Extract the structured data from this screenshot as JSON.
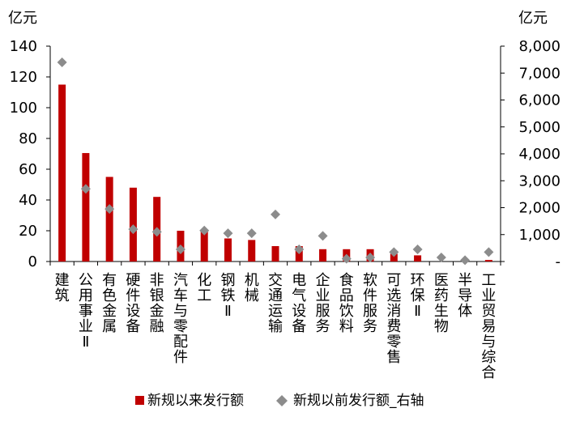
{
  "chart_data": {
    "type": "bar",
    "y_unit_left": "亿元",
    "y_unit_right": "亿元",
    "ylim_left": [
      0,
      140
    ],
    "ylim_right": [
      0,
      8000
    ],
    "yticks_left": [
      "0",
      "20",
      "40",
      "60",
      "80",
      "100",
      "120",
      "140"
    ],
    "yticks_right": [
      "-",
      "1,000",
      "2,000",
      "3,000",
      "4,000",
      "5,000",
      "6,000",
      "7,000",
      "8,000"
    ],
    "categories": [
      "建筑",
      "公用事业Ⅱ",
      "有色金属",
      "硬件设备",
      "非银金融",
      "汽车与零配件",
      "化工",
      "钢铁Ⅱ",
      "机械",
      "交通运输",
      "电气设备",
      "企业服务",
      "食品饮料",
      "软件服务",
      "可选消费零售",
      "环保Ⅱ",
      "医药生物",
      "半导体",
      "工业贸易与综合"
    ],
    "series": [
      {
        "name": "新规以来发行额",
        "type": "bar",
        "axis": "left",
        "color": "#C00000",
        "values": [
          115,
          70.5,
          55,
          48,
          42,
          20,
          20,
          15,
          14,
          10,
          10,
          8,
          8,
          8,
          5,
          4,
          0,
          0,
          1
        ]
      },
      {
        "name": "新规以前发行额_右轴",
        "type": "scatter",
        "axis": "right",
        "color": "#8C8C8C",
        "values": [
          7400,
          2700,
          1950,
          1200,
          1100,
          450,
          1150,
          1050,
          1050,
          1750,
          450,
          950,
          100,
          150,
          350,
          450,
          150,
          50,
          350
        ]
      }
    ],
    "legend": "bottom"
  }
}
